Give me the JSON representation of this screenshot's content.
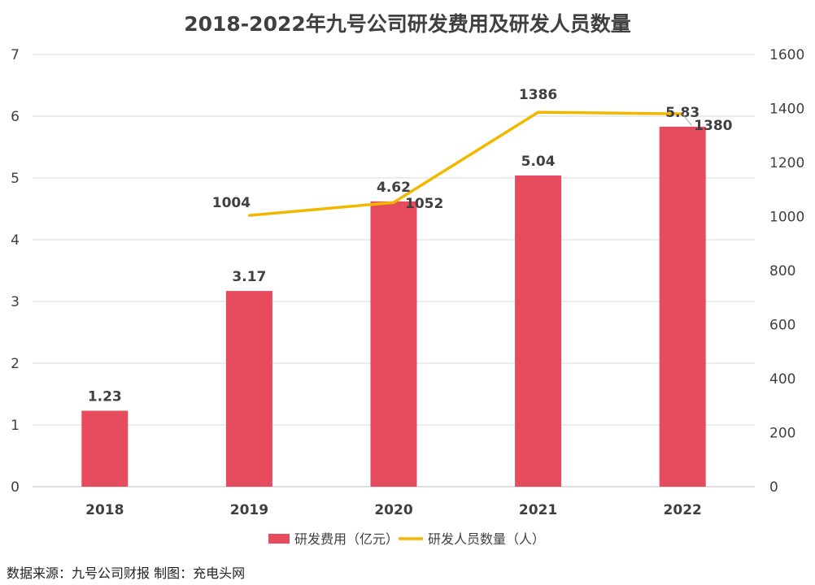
{
  "chart_data": {
    "type": "bar",
    "title": "2018-2022年九号公司研发费用及研发人员数量",
    "categories": [
      "2018",
      "2019",
      "2020",
      "2021",
      "2022"
    ],
    "y_left": {
      "ylim": [
        0,
        7
      ],
      "ticks": [
        0,
        1,
        2,
        3,
        4,
        5,
        6,
        7
      ]
    },
    "y_right": {
      "ylim": [
        0,
        1600
      ],
      "ticks": [
        0,
        200,
        400,
        600,
        800,
        1000,
        1200,
        1400,
        1600
      ]
    },
    "series": [
      {
        "name": "研发费用（亿元）",
        "type": "bar",
        "axis": "left",
        "color": "#E64B5E",
        "values": [
          1.23,
          3.17,
          4.62,
          5.04,
          5.83
        ],
        "labels": [
          "1.23",
          "3.17",
          "4.62",
          "5.04",
          "5.83"
        ]
      },
      {
        "name": "研发人员数量（人）",
        "type": "line",
        "axis": "right",
        "color": "#F2B800",
        "values": [
          null,
          1004,
          1052,
          1386,
          1380
        ],
        "labels": [
          "",
          "1004",
          "1052",
          "1386",
          "1380"
        ]
      }
    ],
    "legend_position": "bottom",
    "grid": true
  },
  "footer": {
    "source": "数据来源：九号公司财报 制图：充电头网"
  }
}
